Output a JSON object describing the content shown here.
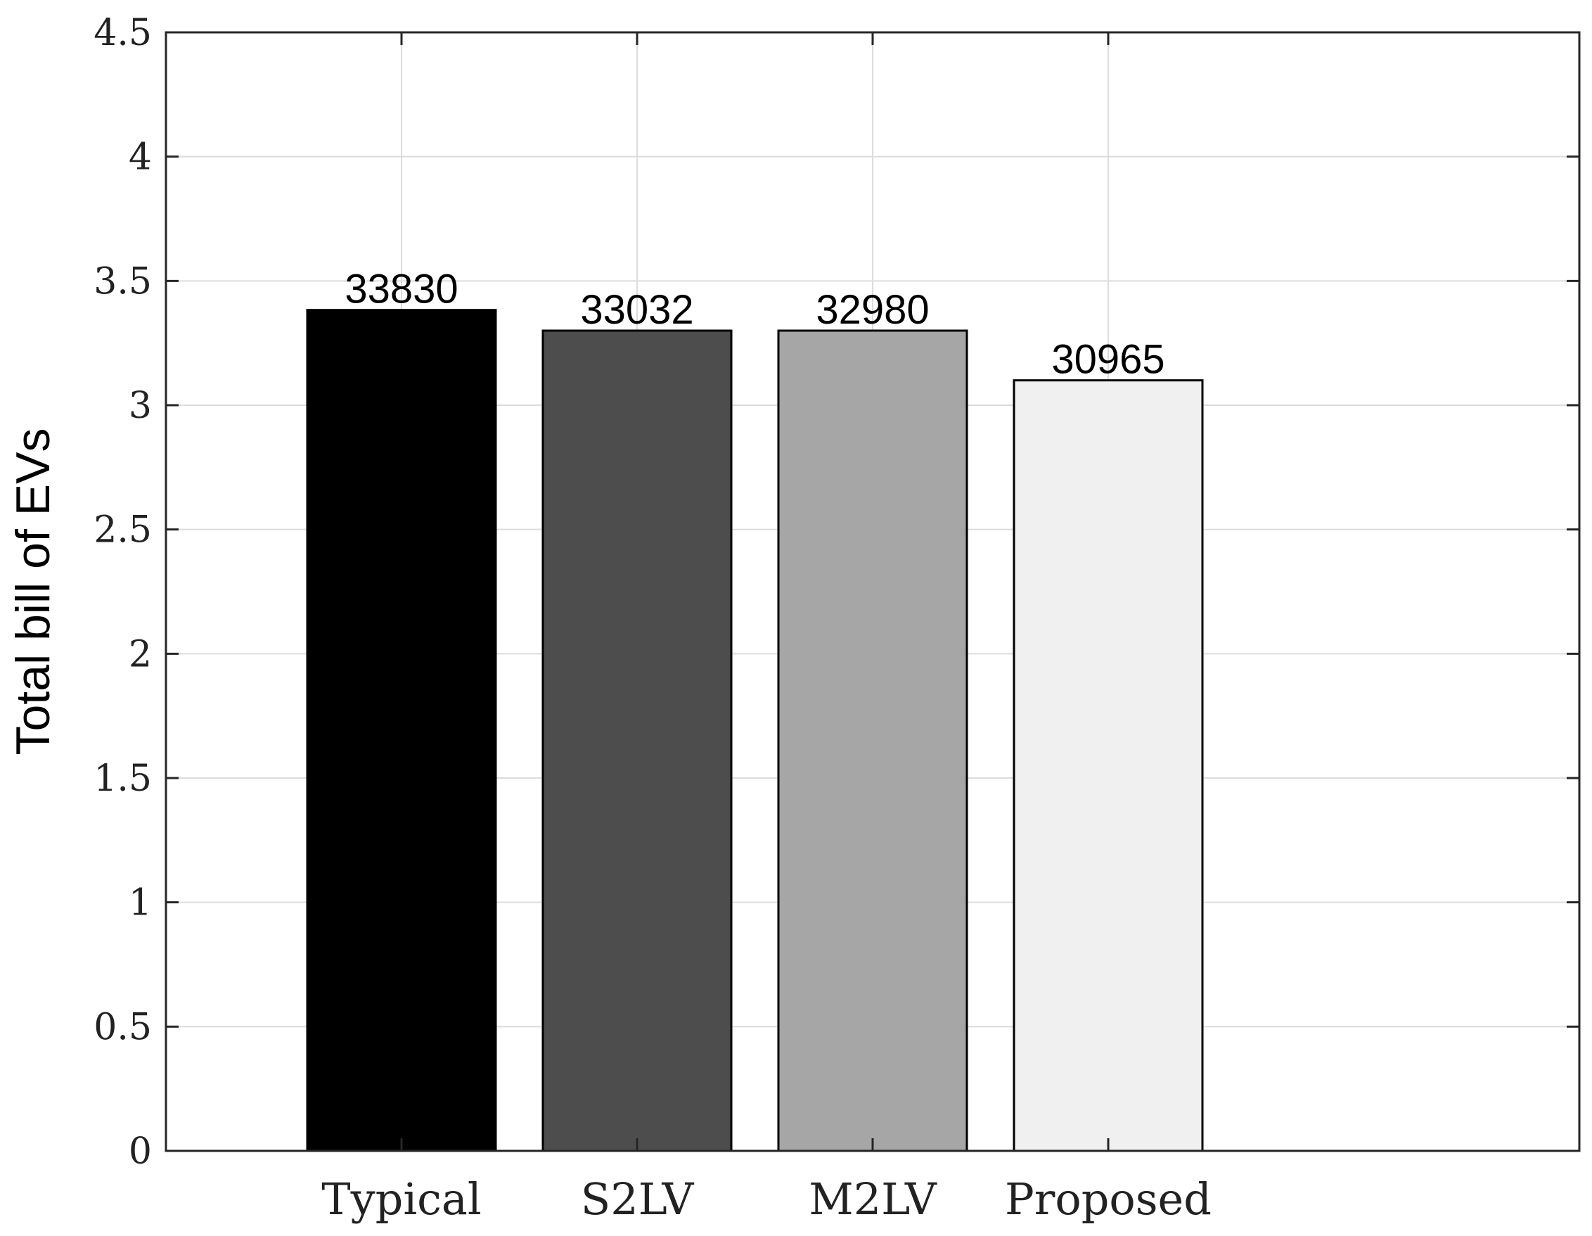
{
  "chart_data": {
    "type": "bar",
    "title": "",
    "xlabel": "",
    "ylabel": "Total bill of EVs",
    "categories": [
      "Typical",
      "S2LV",
      "M2LV",
      "Proposed"
    ],
    "values": [
      3.383,
      3.3,
      3.3,
      3.1
    ],
    "data_labels": [
      "33830",
      "33032",
      "32980",
      "30965"
    ],
    "bar_colors": [
      "#000000",
      "#4d4d4d",
      "#a6a6a6",
      "#f0f0f0"
    ],
    "ylim": [
      0,
      4.5
    ],
    "yticks": [
      0,
      0.5,
      1,
      1.5,
      2,
      2.5,
      3,
      3.5,
      4,
      4.5
    ],
    "ytick_labels": [
      "0",
      "0.5",
      "1",
      "1.5",
      "2",
      "2.5",
      "3",
      "3.5",
      "4",
      "4.5"
    ],
    "grid": true,
    "legend": "none"
  }
}
